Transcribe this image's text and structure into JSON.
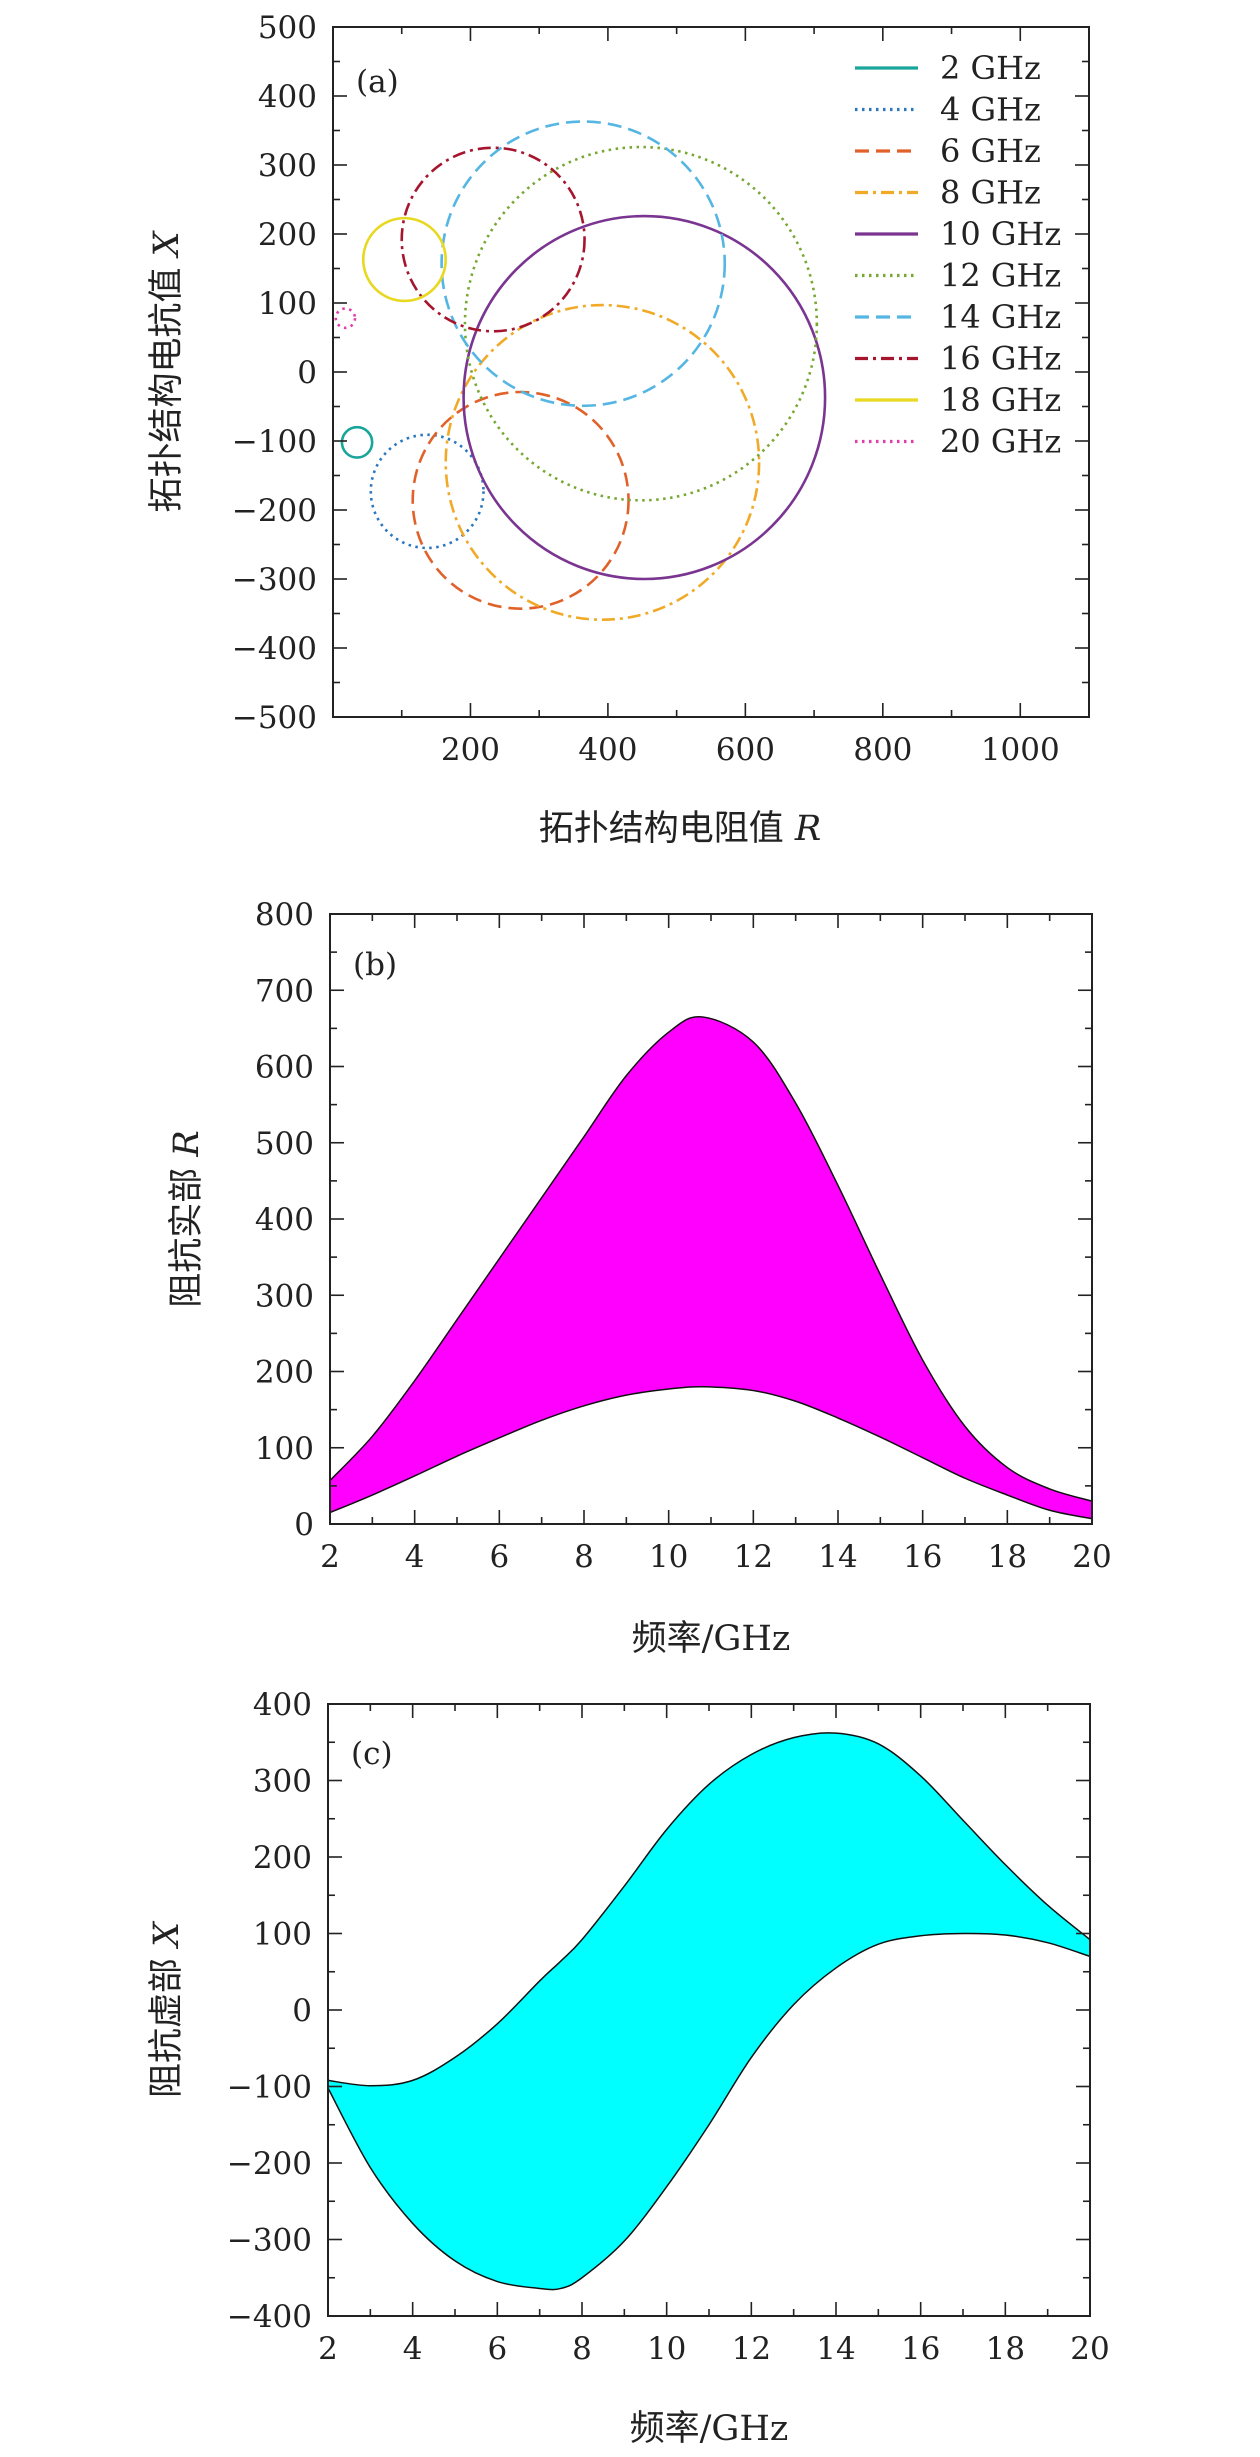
{
  "chart_data": [
    {
      "type": "scatter",
      "panel": "(a)",
      "xlabel": "拓扑结构电阻值",
      "xlabel_var": "R",
      "ylabel": "拓扑结构电抗值",
      "ylabel_var": "X",
      "xlim": [
        0,
        1100
      ],
      "ylim": [
        -500,
        500
      ],
      "xticks": [
        200,
        400,
        600,
        800,
        1000
      ],
      "yticks": [
        -500,
        -400,
        -300,
        -200,
        -100,
        0,
        100,
        200,
        300,
        400,
        500
      ],
      "xtick_labels": [
        "200",
        "400",
        "600",
        "800",
        "1000"
      ],
      "ytick_labels": [
        "−500",
        "−400",
        "−300",
        "−200",
        "−100",
        "0",
        "100",
        "200",
        "300",
        "400",
        "500"
      ],
      "grid": false,
      "legend_position": "top-right",
      "series": [
        {
          "name": "2 GHz",
          "color": "#1aa59a",
          "dash": "solid",
          "center": [
            35,
            -102
          ],
          "radius": 22
        },
        {
          "name": "4 GHz",
          "color": "#2a76bf",
          "dash": "dotted",
          "center": [
            137,
            -173
          ],
          "radius": 82
        },
        {
          "name": "6 GHz",
          "color": "#e0622a",
          "dash": "dashed",
          "center": [
            273,
            -186
          ],
          "radius": 157
        },
        {
          "name": "8 GHz",
          "color": "#f0aa28",
          "dash": "dashdot",
          "center": [
            392,
            -131
          ],
          "radius": 228
        },
        {
          "name": "10 GHz",
          "color": "#7a3590",
          "dash": "solid",
          "center": [
            453,
            -37
          ],
          "radius": 263
        },
        {
          "name": "12 GHz",
          "color": "#77a832",
          "dash": "dotted",
          "center": [
            448,
            70
          ],
          "radius": 256
        },
        {
          "name": "14 GHz",
          "color": "#55b6e3",
          "dash": "dashed",
          "center": [
            364,
            157
          ],
          "radius": 206
        },
        {
          "name": "16 GHz",
          "color": "#a5152d",
          "dash": "dashdot",
          "center": [
            233,
            192
          ],
          "radius": 133
        },
        {
          "name": "18 GHz",
          "color": "#e8d81f",
          "dash": "solid",
          "center": [
            104,
            163
          ],
          "radius": 60
        },
        {
          "name": "20 GHz",
          "color": "#e23ca8",
          "dash": "dotted",
          "center": [
            18,
            78
          ],
          "radius": 14
        }
      ]
    },
    {
      "type": "area",
      "panel": "(b)",
      "xlabel": "频率/GHz",
      "ylabel": "阻抗实部",
      "ylabel_var": "R",
      "xlim": [
        2,
        20
      ],
      "ylim": [
        0,
        800
      ],
      "xticks": [
        2,
        4,
        6,
        8,
        10,
        12,
        14,
        16,
        18,
        20
      ],
      "yticks": [
        0,
        100,
        200,
        300,
        400,
        500,
        600,
        700,
        800
      ],
      "fill_color": "#ff00ff",
      "grid": false,
      "x": [
        2,
        3,
        4,
        5,
        6,
        7,
        8,
        9,
        10,
        10.8,
        12,
        13,
        14,
        15,
        16,
        17,
        18,
        19,
        20
      ],
      "upper": [
        57,
        115,
        188,
        268,
        348,
        428,
        508,
        588,
        645,
        665,
        632,
        552,
        444,
        327,
        215,
        128,
        74,
        46,
        30
      ],
      "lower": [
        15,
        38,
        63,
        89,
        113,
        136,
        155,
        169,
        177,
        180,
        175,
        161,
        139,
        114,
        87,
        60,
        38,
        18,
        7
      ]
    },
    {
      "type": "area",
      "panel": "(c)",
      "xlabel": "频率/GHz",
      "ylabel": "阻抗虚部",
      "ylabel_var": "X",
      "xlim": [
        2,
        20
      ],
      "ylim": [
        -400,
        400
      ],
      "xticks": [
        2,
        4,
        6,
        8,
        10,
        12,
        14,
        16,
        18,
        20
      ],
      "yticks": [
        -400,
        -300,
        -200,
        -100,
        0,
        100,
        200,
        300,
        400
      ],
      "fill_color": "#00ffff",
      "grid": false,
      "x": [
        2,
        3,
        4,
        5,
        6,
        7,
        7.5,
        8,
        9,
        10,
        11,
        12,
        13,
        14,
        15,
        16,
        17,
        18,
        19,
        20
      ],
      "upper": [
        -92,
        -99,
        -92,
        -62,
        -18,
        38,
        64,
        92,
        162,
        236,
        295,
        334,
        356,
        362,
        348,
        306,
        248,
        190,
        137,
        92
      ],
      "lower": [
        -102,
        -206,
        -279,
        -328,
        -355,
        -364,
        -364,
        -350,
        -302,
        -231,
        -150,
        -62,
        7,
        55,
        86,
        97,
        100,
        98,
        88,
        70
      ]
    }
  ]
}
